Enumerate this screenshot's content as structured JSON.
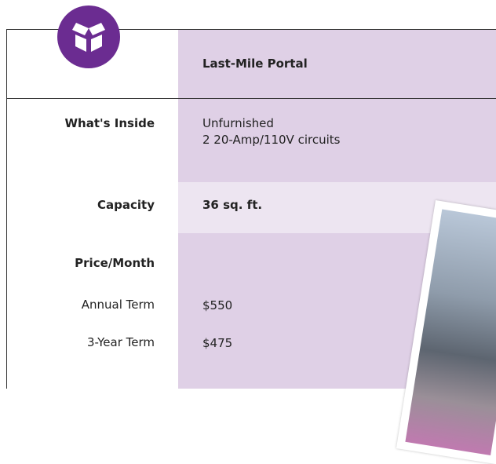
{
  "header": {
    "title": "Last-Mile Portal"
  },
  "rows": [
    {
      "label": "What's Inside",
      "lines": [
        "Unfurnished",
        "2 20-Amp/110V circuits"
      ]
    },
    {
      "label": "Capacity",
      "value": "36 sq. ft."
    },
    {
      "label": "Price/Month"
    },
    {
      "label": "Annual Term",
      "value": "$550"
    },
    {
      "label": "3-Year Term",
      "value": "$475"
    }
  ]
}
